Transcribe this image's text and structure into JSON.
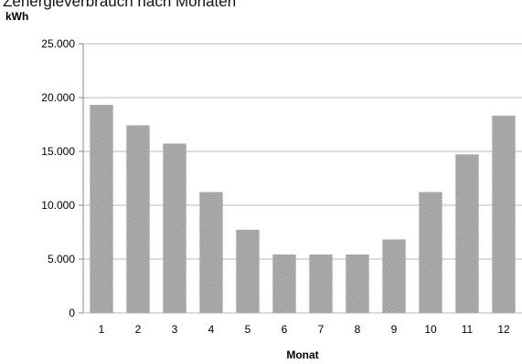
{
  "chart_data": {
    "type": "bar",
    "title": "Zenergieverbrauch nach Monaten",
    "ylabel": "kWh",
    "xlabel": "Monat",
    "ylim": [
      0,
      25000
    ],
    "yticks": [
      0,
      5000,
      10000,
      15000,
      20000,
      25000
    ],
    "ytick_labels": [
      "0",
      "5.000",
      "10.000",
      "15.000",
      "20.000",
      "25.000"
    ],
    "grid": true,
    "legend": "none",
    "bar_color": "#a8a8a8",
    "categories": [
      "1",
      "2",
      "3",
      "4",
      "5",
      "6",
      "7",
      "8",
      "9",
      "10",
      "11",
      "12"
    ],
    "values": [
      19300,
      17400,
      15700,
      11200,
      7700,
      5400,
      5400,
      5400,
      6800,
      11200,
      14700,
      18300
    ]
  }
}
